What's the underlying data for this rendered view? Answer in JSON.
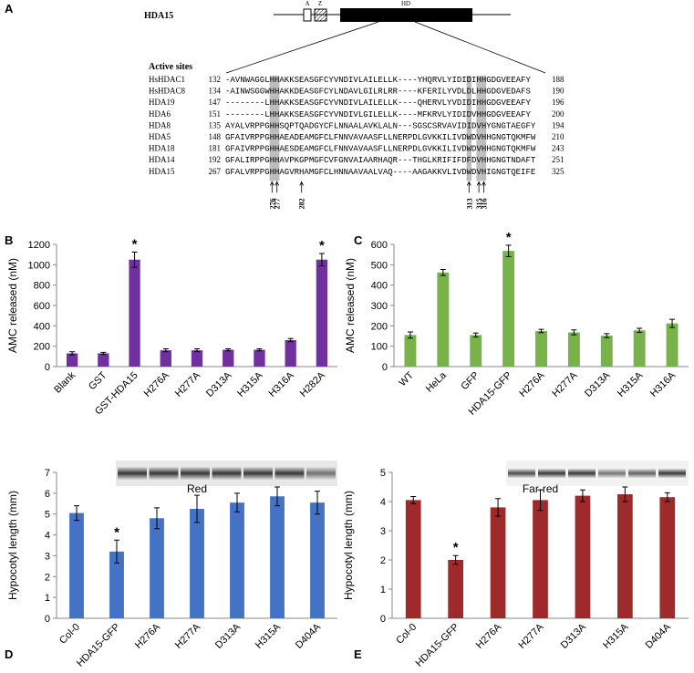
{
  "alignment": {
    "panel": "A",
    "gene": "HDA15",
    "domains": [
      "A",
      "Z",
      "HD"
    ],
    "heading": "Active sites",
    "rows": [
      {
        "name": "HsHDAC1",
        "start": "132",
        "seq": "-AVNWAGGLHHAKKSEASGFCYVNDIVLAILELLK----YHQRVLYIDIDIHHGDGVEEAFY",
        "end": "188"
      },
      {
        "name": "HsHDAC8",
        "start": "134",
        "seq": "-AINWSGGWHHAKKDEASGFCYLNDAVLGILRLRR----KFERILYVDLDLHHGDGVEDAFS",
        "end": "190"
      },
      {
        "name": "HDA19",
        "start": "147",
        "seq": "--------LHHAKKSEASGFCYVNDIVLAILELLK----QHERVLYVDIDIHHGDGVEEAFY",
        "end": "196"
      },
      {
        "name": "HDA6",
        "start": "151",
        "seq": "--------LHHAKKSEASGFCYVNDIVLGILELLK----MFKRVLYIDIDVHHGDGVEEAFY",
        "end": "200"
      },
      {
        "name": "HDA8",
        "start": "135",
        "seq": "AYALVRPPGHHSQPTQADGYCFLNNAALAVKLALN---SGSCSRVAVIDIDVHYGNGTAEGFY",
        "end": "194"
      },
      {
        "name": "HDA5",
        "start": "148",
        "seq": "GFAIVRPPGHHAEADEAMGFCLFNNVAVAASFLLNERPDLGVKKILIVDWDVHHGNGTQKMFW",
        "end": "210"
      },
      {
        "name": "HDA18",
        "start": "181",
        "seq": "GFAIVRPPGHHAESDEAMGFCLFNNVAVAASFLLNERPDLGVKKILIVDWDVHHGNGTQKMFW",
        "end": "243"
      },
      {
        "name": "HDA14",
        "start": "192",
        "seq": "GFALIRPPGHHAVPKGPMGFCVFGNVAIAARHAQR---THGLKRIFIFDFDVHHGNGTNDAFT",
        "end": "251"
      },
      {
        "name": "HDA15",
        "start": "267",
        "seq": "GFALVRPPGHHAGVRHAMGFCLHNNAAVAALVAQ----AAGAKKVLIVDWDVHIGNGTQEIFE",
        "end": "325"
      }
    ],
    "residues": [
      "276",
      "277",
      "282",
      "313",
      "315",
      "316"
    ]
  },
  "chart_data": [
    {
      "type": "bar",
      "panel": "B",
      "y_label": "AMC released (nM)",
      "categories": [
        "Blank",
        "GST",
        "GST-HDA15",
        "H276A",
        "H277A",
        "D313A",
        "H315A",
        "H316A",
        "H282A"
      ],
      "values": [
        130,
        130,
        1050,
        160,
        160,
        165,
        165,
        260,
        1050
      ],
      "errors": [
        15,
        10,
        75,
        15,
        15,
        10,
        10,
        15,
        60
      ],
      "color": "#7030a0",
      "ylim": [
        0,
        1200
      ],
      "yticks": [
        0,
        200,
        400,
        600,
        800,
        1000,
        1200
      ],
      "annotations": [
        {
          "category": "GST-HDA15",
          "text": "*"
        },
        {
          "category": "H282A",
          "text": "*"
        }
      ]
    },
    {
      "type": "bar",
      "panel": "C",
      "y_label": "AMC released (nM)",
      "categories": [
        "WT",
        "HeLa",
        "GFP",
        "HDA15-GFP",
        "H276A",
        "H277A",
        "D313A",
        "H315A",
        "H316A"
      ],
      "values": [
        155,
        462,
        155,
        568,
        175,
        168,
        152,
        178,
        212
      ],
      "errors": [
        15,
        15,
        10,
        28,
        8,
        12,
        10,
        10,
        20
      ],
      "color": "#77b348",
      "ylim": [
        0,
        600
      ],
      "yticks": [
        0,
        100,
        200,
        300,
        400,
        500,
        600
      ],
      "annotations": [
        {
          "category": "HDA15-GFP",
          "text": "*"
        }
      ]
    },
    {
      "type": "bar",
      "panel": "D",
      "title": "Red",
      "y_label": "Hypocotyl length (mm)",
      "categories": [
        "Col-0",
        "HDA15-GFP",
        "H276A",
        "H277A",
        "D313A",
        "H315A",
        "D404A"
      ],
      "values": [
        5.05,
        3.2,
        4.8,
        5.25,
        5.55,
        5.85,
        5.55
      ],
      "errors": [
        0.35,
        0.55,
        0.5,
        0.65,
        0.45,
        0.45,
        0.55
      ],
      "color": "#4472c4",
      "ylim": [
        0,
        7
      ],
      "yticks": [
        0,
        1,
        2,
        3,
        4,
        5,
        6,
        7
      ],
      "annotations": [
        {
          "category": "HDA15-GFP",
          "text": "*"
        }
      ]
    },
    {
      "type": "bar",
      "panel": "E",
      "title": "Far-red",
      "y_label": "Hypocotyl length (mm)",
      "categories": [
        "Col-0",
        "HDA15-GFP",
        "H276A",
        "H277A",
        "D313A",
        "H315A",
        "D404A"
      ],
      "values": [
        4.05,
        2.0,
        3.8,
        4.05,
        4.2,
        4.25,
        4.15
      ],
      "errors": [
        0.12,
        0.15,
        0.3,
        0.35,
        0.2,
        0.25,
        0.15
      ],
      "color": "#9e2a2b",
      "ylim": [
        0,
        5
      ],
      "yticks": [
        0,
        1,
        2,
        3,
        4,
        5
      ],
      "annotations": [
        {
          "category": "HDA15-GFP",
          "text": "*"
        }
      ]
    }
  ]
}
